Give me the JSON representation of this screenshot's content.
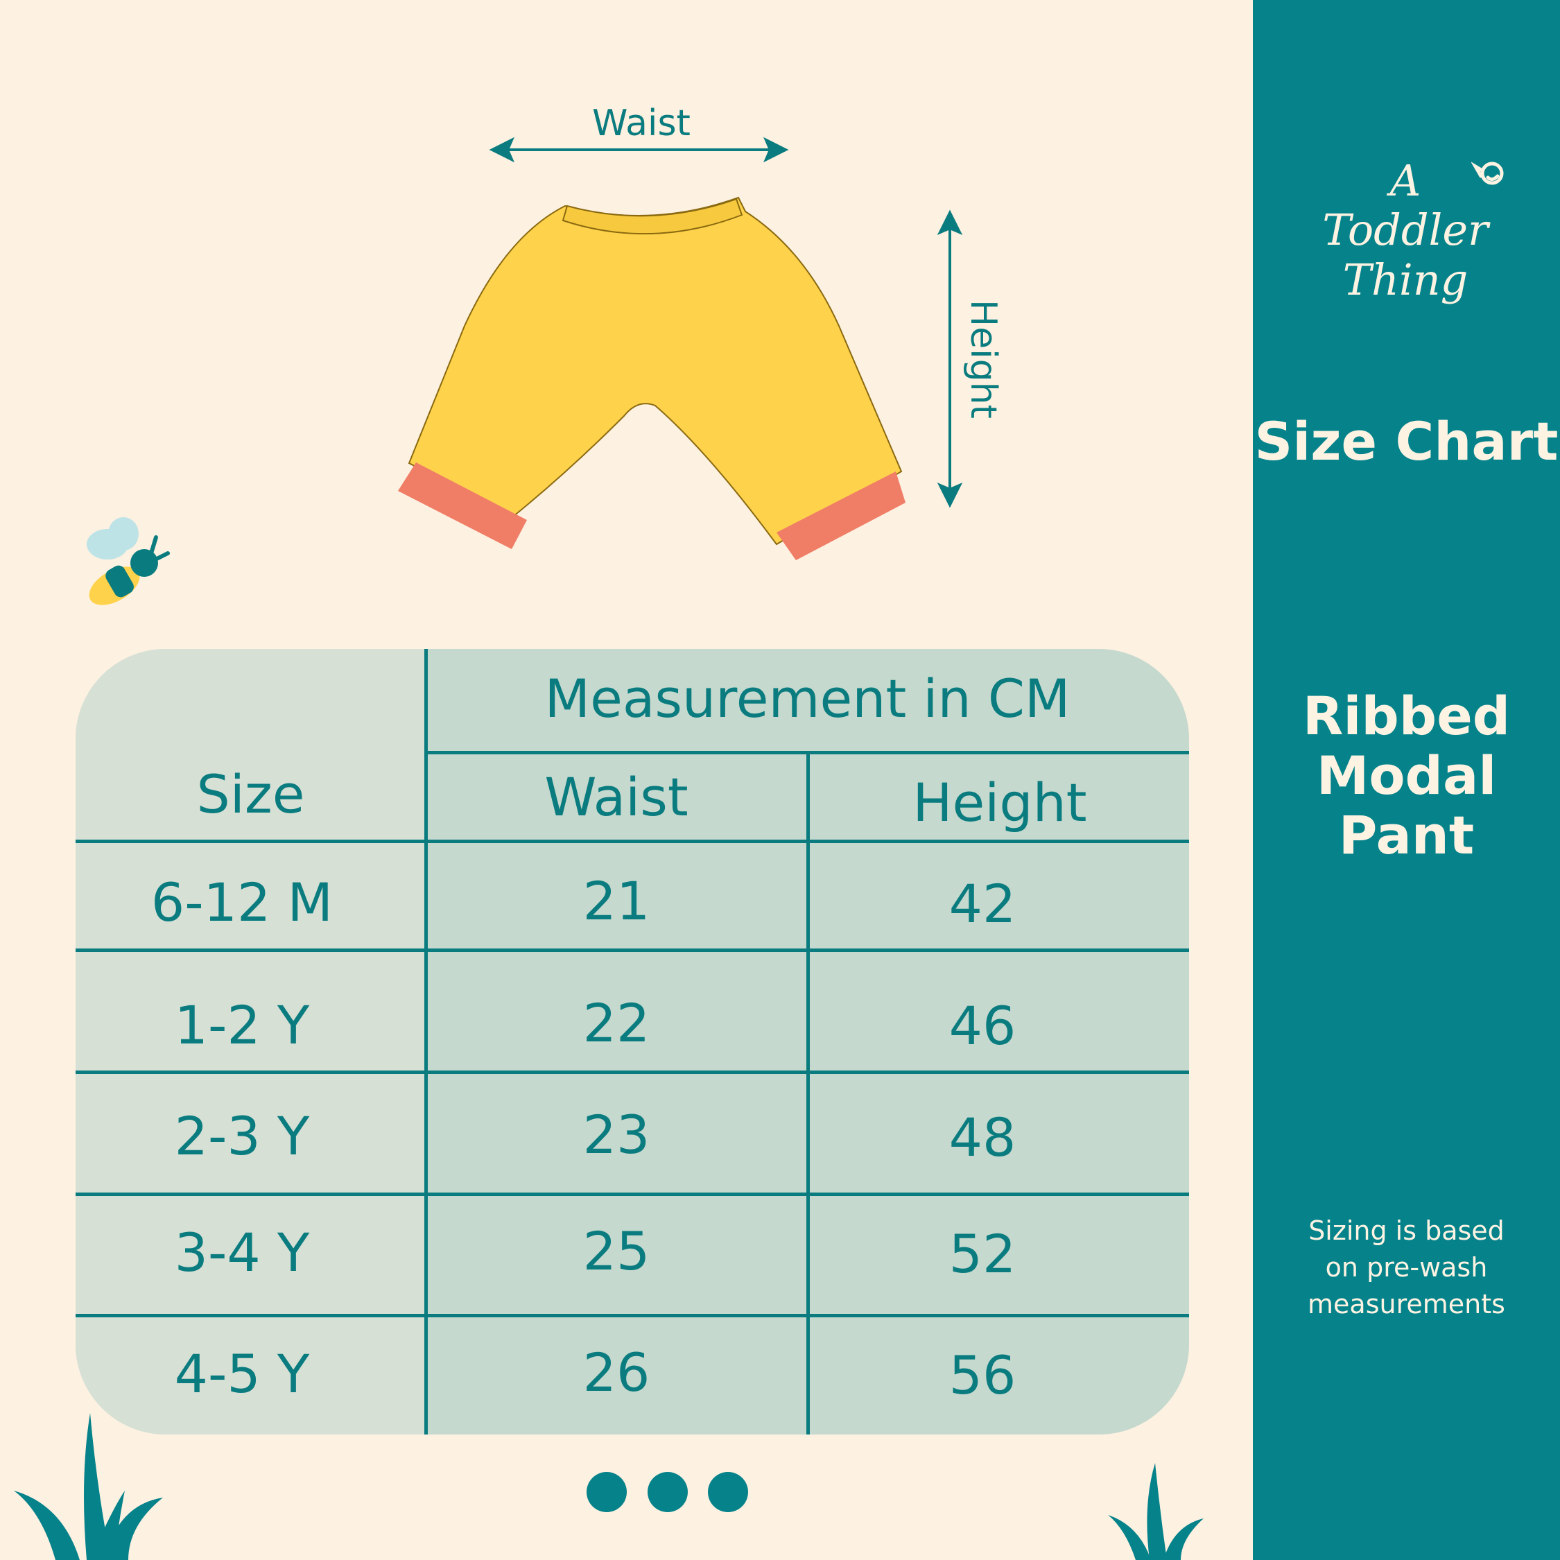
{
  "diagram": {
    "waist_label": "Waist",
    "height_label": "Height"
  },
  "table": {
    "size_header": "Size",
    "measurement_header": "Measurement in CM",
    "waist_header": "Waist",
    "height_header": "Height",
    "rows": [
      {
        "size": "6-12 M",
        "waist": "21",
        "height": "42"
      },
      {
        "size": "1-2 Y",
        "waist": "22",
        "height": "46"
      },
      {
        "size": "2-3 Y",
        "waist": "23",
        "height": "48"
      },
      {
        "size": "3-4 Y",
        "waist": "25",
        "height": "52"
      },
      {
        "size": "4-5 Y",
        "waist": "26",
        "height": "56"
      }
    ]
  },
  "panel": {
    "brand": "A Toddler Thing",
    "title": "Size Chart",
    "product_lines": [
      "Ribbed",
      "Modal",
      "Pant"
    ],
    "note_lines": [
      "Sizing is based",
      "on pre-wash",
      "measurements"
    ]
  },
  "pagination": {
    "dots": 3
  },
  "colors": {
    "teal": "#05828A",
    "cream": "#FDF1E1",
    "pant": "#FFD24C",
    "cuff": "#F07D66"
  }
}
